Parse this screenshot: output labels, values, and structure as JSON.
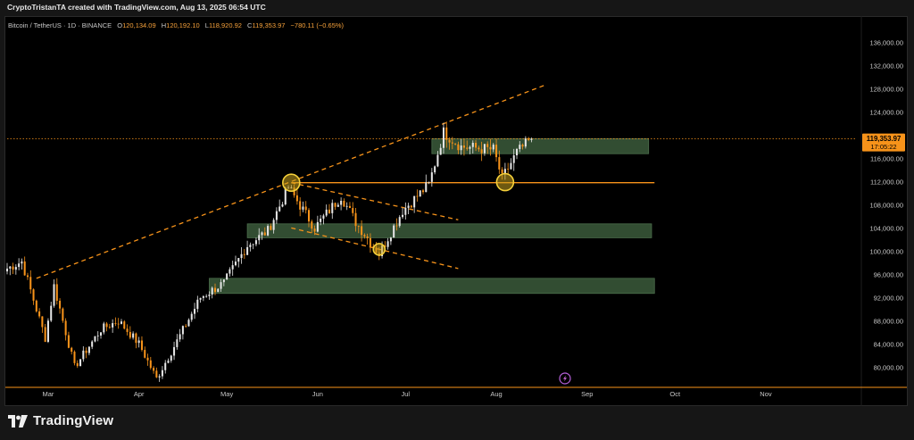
{
  "credit": "CryptoTristanTA created with TradingView.com, Aug 13, 2025 06:54 UTC",
  "legend": {
    "symbol": "Bitcoin / TetherUS · 1D · BINANCE",
    "open_label": "O",
    "open": "120,134.09",
    "high_label": "H",
    "high": "120,192.10",
    "low_label": "L",
    "low": "118,920.92",
    "close_label": "C",
    "close": "119,353.97",
    "change": "−780.11 (−0.65%)"
  },
  "brand": {
    "name": "TradingView",
    "logo_icon": "tradingview-logo-icon"
  },
  "colors": {
    "up": "#e6e6e6",
    "down": "#f7931a",
    "accent": "#f7931a",
    "zone": "#3b5a3b",
    "marker": "#f5d03a",
    "bg": "#000000"
  },
  "chart_data": {
    "type": "candlestick",
    "ylim": [
      76500,
      139000
    ],
    "y_ticks": [
      80000,
      84000,
      88000,
      92000,
      96000,
      100000,
      104000,
      108000,
      112000,
      116000,
      120000,
      124000,
      128000,
      132000,
      136000
    ],
    "y_tick_labels": [
      "80,000.00",
      "84,000.00",
      "88,000.00",
      "92,000.00",
      "96,000.00",
      "100,000.00",
      "104,000.00",
      "108,000.00",
      "112,000.00",
      "116,000.00",
      "120,000.00",
      "124,000.00",
      "128,000.00",
      "132,000.00",
      "136,000.00"
    ],
    "x_range": [
      "2025-02-15",
      "2025-11-26"
    ],
    "x_ticks": [
      "2025-03-01",
      "2025-04-01",
      "2025-05-01",
      "2025-06-01",
      "2025-07-01",
      "2025-08-01",
      "2025-09-01",
      "2025-10-01",
      "2025-11-01"
    ],
    "x_tick_labels": [
      "Mar",
      "Apr",
      "May",
      "Jun",
      "Jul",
      "Aug",
      "Sep",
      "Oct",
      "Nov"
    ],
    "last_price": 119353.97,
    "last_price_label": "119,353.97",
    "countdown": "17:05:22",
    "anchors": [
      {
        "date": "2025-02-15",
        "price": 97000
      },
      {
        "date": "2025-02-20",
        "price": 98200
      },
      {
        "date": "2025-02-28",
        "price": 85000
      },
      {
        "date": "2025-03-03",
        "price": 94000
      },
      {
        "date": "2025-03-10",
        "price": 80000
      },
      {
        "date": "2025-03-19",
        "price": 86500
      },
      {
        "date": "2025-03-25",
        "price": 88000
      },
      {
        "date": "2025-04-01",
        "price": 84000
      },
      {
        "date": "2025-04-07",
        "price": 78000
      },
      {
        "date": "2025-04-14",
        "price": 84500
      },
      {
        "date": "2025-04-22",
        "price": 92000
      },
      {
        "date": "2025-04-30",
        "price": 94500
      },
      {
        "date": "2025-05-08",
        "price": 101000
      },
      {
        "date": "2025-05-15",
        "price": 103500
      },
      {
        "date": "2025-05-22",
        "price": 111000
      },
      {
        "date": "2025-05-31",
        "price": 104000
      },
      {
        "date": "2025-06-09",
        "price": 109500
      },
      {
        "date": "2025-06-14",
        "price": 105000
      },
      {
        "date": "2025-06-22",
        "price": 99500
      },
      {
        "date": "2025-06-30",
        "price": 107000
      },
      {
        "date": "2025-07-09",
        "price": 111500
      },
      {
        "date": "2025-07-14",
        "price": 120500
      },
      {
        "date": "2025-07-20",
        "price": 118000
      },
      {
        "date": "2025-07-31",
        "price": 117500
      },
      {
        "date": "2025-08-03",
        "price": 112500
      },
      {
        "date": "2025-08-08",
        "price": 117000
      },
      {
        "date": "2025-08-13",
        "price": 119354
      }
    ],
    "zones": [
      {
        "from": "2025-07-10",
        "to": "2025-09-22",
        "low": 116800,
        "high": 119400
      },
      {
        "from": "2025-05-08",
        "to": "2025-09-23",
        "low": 102300,
        "high": 104700
      },
      {
        "from": "2025-04-25",
        "to": "2025-09-24",
        "low": 92700,
        "high": 95300
      }
    ],
    "levels": [
      {
        "from": "2025-05-23",
        "to": "2025-09-24",
        "price": 111800
      }
    ],
    "trendlines": [
      {
        "from": {
          "date": "2025-02-25",
          "price": 95300
        },
        "to": {
          "date": "2025-08-18",
          "price": 128700
        }
      },
      {
        "from": {
          "date": "2025-05-23",
          "price": 111800
        },
        "to": {
          "date": "2025-07-19",
          "price": 105400
        }
      },
      {
        "from": {
          "date": "2025-05-23",
          "price": 104000
        },
        "to": {
          "date": "2025-07-19",
          "price": 97000
        }
      }
    ],
    "markers": [
      {
        "date": "2025-05-23",
        "price": 111800,
        "size": "large"
      },
      {
        "date": "2025-06-22",
        "price": 100300,
        "size": "small"
      },
      {
        "date": "2025-08-04",
        "price": 111900,
        "size": "large"
      }
    ]
  }
}
